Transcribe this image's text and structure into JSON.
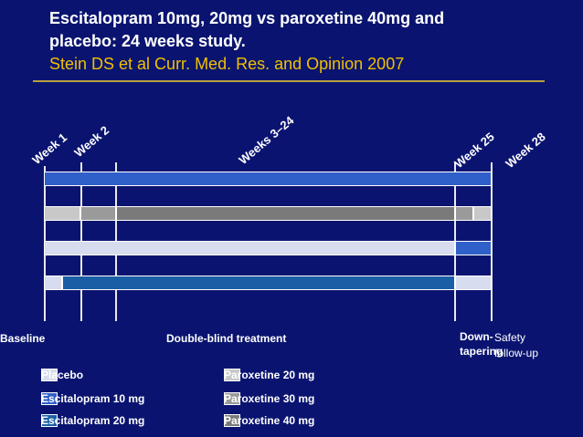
{
  "title": {
    "line1": "Escitalopram 10mg, 20mg vs paroxetine 40mg and",
    "line2": "placebo: 24 weeks study.",
    "citation": "Stein DS et al Curr. Med. Res. and Opinion 2007"
  },
  "timeline": {
    "weeks": [
      "Week 1",
      "Week 2",
      "Weeks 3–24",
      "Week 25",
      "Week 28"
    ]
  },
  "phases": {
    "baseline": "Baseline",
    "double_blind": "Double-blind treatment",
    "down_tapering_1": "Down-",
    "down_tapering_2": "tapering",
    "safety_1": "Safety",
    "safety_2": "follow-up"
  },
  "legend": {
    "placebo": "Placebo",
    "escitalopram_10": "Escitalopram 10 mg",
    "escitalopram_20": "Escitalopram 20 mg",
    "paroxetine_20": "Paroxetine 20 mg",
    "paroxetine_30": "Paroxetine 30 mg",
    "paroxetine_40": "Paroxetine 40 mg"
  },
  "colors": {
    "background": "#0a1470",
    "escitalopram_10": "#2f5fc8",
    "escitalopram_20": "#1a5fa5",
    "placebo": "#d7ddee",
    "paroxetine_20": "#c8c8c8",
    "paroxetine_30": "#9a9a9a",
    "paroxetine_40": "#7a7a7a",
    "citation": "#f0c000"
  }
}
